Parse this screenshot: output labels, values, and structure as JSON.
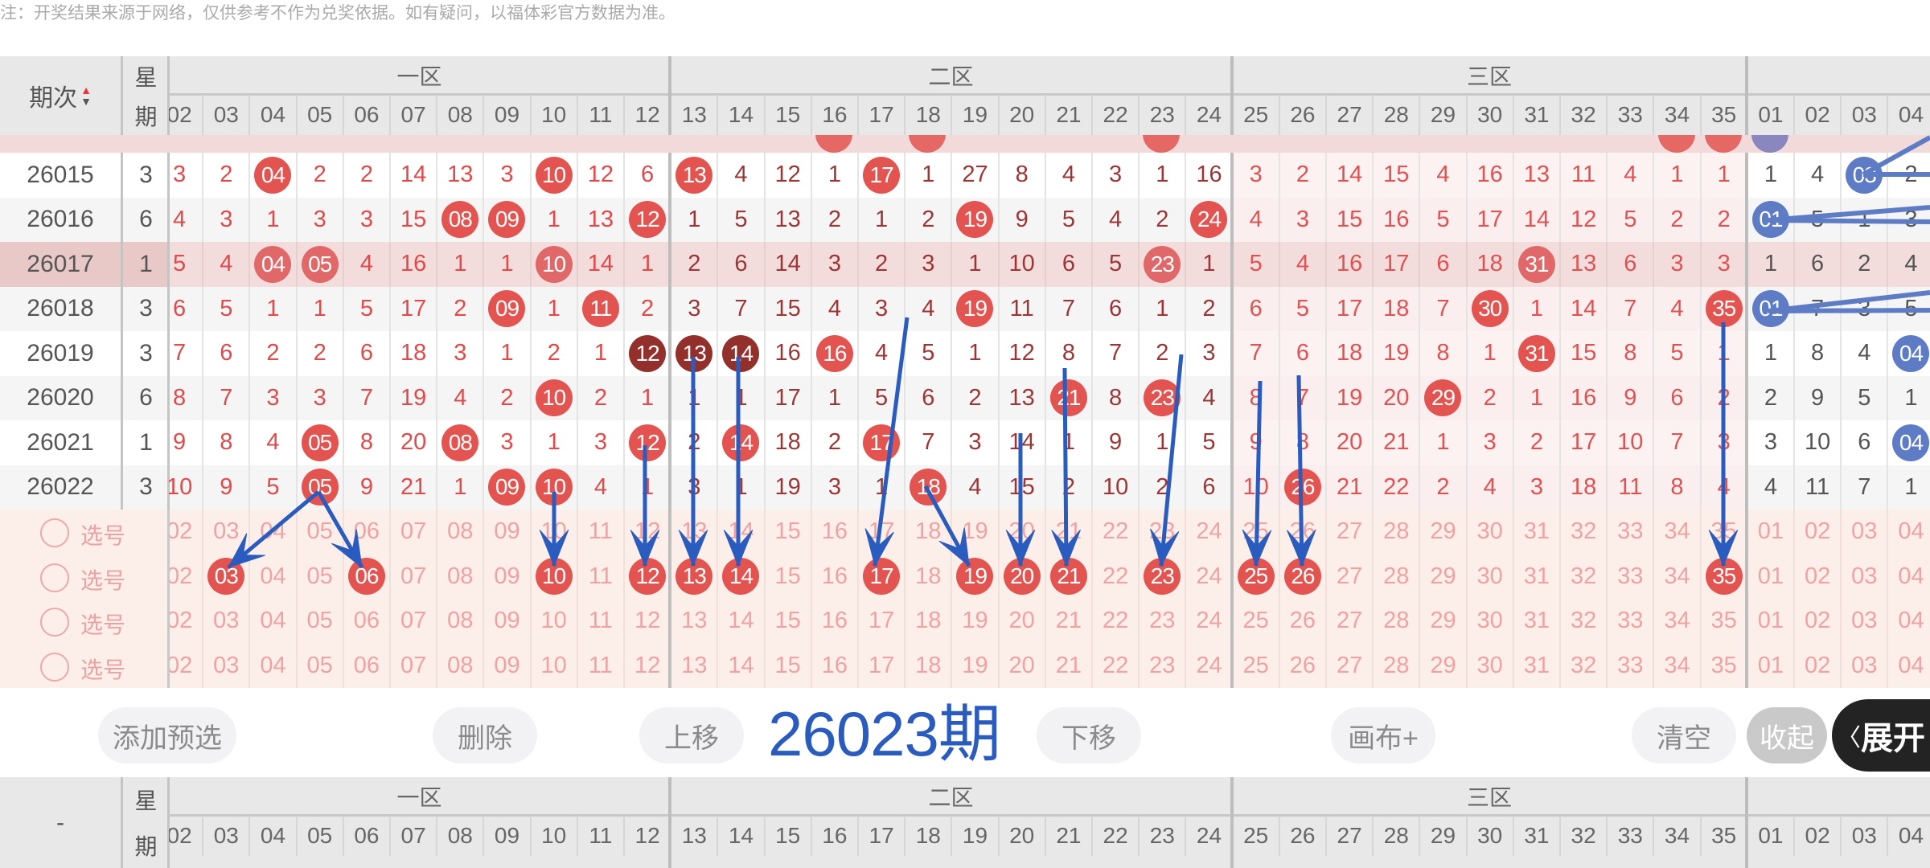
{
  "notice": "注：开奖结果来源于网络，仅供参考不作为兑奖依据。如有疑问，以福体彩官方数据为准。",
  "colors": {
    "red_ball": "#e3534f",
    "dark_ball": "#93302c",
    "blue_ball": "#5e7cc6",
    "highlight_row": "#f3dcdc",
    "zone1_text": "#e04a4a",
    "zone2_text": "#9c3636",
    "zone3_text": "#e05252",
    "annotation": "#2a5bbf"
  },
  "table": {
    "period_header": "期次",
    "sort_icon": "sort-up-down-icon",
    "weekday_header_top": "星",
    "weekday_header_bottom": "期",
    "zones": [
      "一区",
      "二区",
      "三区"
    ],
    "red_columns": [
      "02",
      "03",
      "04",
      "05",
      "06",
      "07",
      "08",
      "09",
      "10",
      "11",
      "12",
      "13",
      "14",
      "15",
      "16",
      "17",
      "18",
      "19",
      "20",
      "21",
      "22",
      "23",
      "24",
      "25",
      "26",
      "27",
      "28",
      "29",
      "30",
      "31",
      "32",
      "33",
      "34",
      "35"
    ],
    "blue_columns": [
      "01",
      "02",
      "03",
      "04"
    ],
    "partial_row": {
      "hits": [
        "16",
        "18",
        "23",
        "34",
        "35"
      ],
      "blue_hits": [
        "01"
      ]
    },
    "rows": [
      {
        "period": "26015",
        "weekday": "3",
        "red": [
          "3",
          "2",
          "04",
          "2",
          "2",
          "14",
          "13",
          "3",
          "10",
          "12",
          "6",
          "13",
          "4",
          "12",
          "1",
          "17",
          "1",
          "27",
          "8",
          "4",
          "3",
          "1",
          "16",
          "3",
          "2",
          "14",
          "15",
          "4",
          "16",
          "13",
          "11",
          "4",
          "1",
          "1"
        ],
        "blue": [
          "1",
          "4",
          "03",
          "2"
        ],
        "hits": [
          "04",
          "10",
          "13",
          "17"
        ],
        "blue_hits": [
          "03"
        ]
      },
      {
        "period": "26016",
        "weekday": "6",
        "red": [
          "4",
          "3",
          "1",
          "3",
          "3",
          "15",
          "08",
          "09",
          "1",
          "13",
          "12",
          "1",
          "5",
          "13",
          "2",
          "1",
          "2",
          "19",
          "9",
          "5",
          "4",
          "2",
          "24",
          "4",
          "3",
          "15",
          "16",
          "5",
          "17",
          "14",
          "12",
          "5",
          "2",
          "2"
        ],
        "blue": [
          "01",
          "5",
          "1",
          "3"
        ],
        "hits": [
          "08",
          "09",
          "12",
          "19",
          "24"
        ],
        "blue_hits": [
          "01"
        ]
      },
      {
        "period": "26017",
        "weekday": "1",
        "highlight": true,
        "red": [
          "5",
          "4",
          "04",
          "05",
          "4",
          "16",
          "1",
          "1",
          "10",
          "14",
          "1",
          "2",
          "6",
          "14",
          "3",
          "2",
          "3",
          "1",
          "10",
          "6",
          "5",
          "23",
          "1",
          "5",
          "4",
          "16",
          "17",
          "6",
          "18",
          "31",
          "13",
          "6",
          "3",
          "3"
        ],
        "blue": [
          "1",
          "6",
          "2",
          "4"
        ],
        "hits": [
          "04",
          "05",
          "10",
          "23",
          "31"
        ],
        "blue_hits": []
      },
      {
        "period": "26018",
        "weekday": "3",
        "red": [
          "6",
          "5",
          "1",
          "1",
          "5",
          "17",
          "2",
          "09",
          "1",
          "11",
          "2",
          "3",
          "7",
          "15",
          "4",
          "3",
          "4",
          "19",
          "11",
          "7",
          "6",
          "1",
          "2",
          "6",
          "5",
          "17",
          "18",
          "7",
          "30",
          "1",
          "14",
          "7",
          "4",
          "35"
        ],
        "blue": [
          "01",
          "7",
          "3",
          "5"
        ],
        "hits": [
          "09",
          "11",
          "19",
          "30",
          "35"
        ],
        "blue_hits": [
          "01"
        ]
      },
      {
        "period": "26019",
        "weekday": "3",
        "red": [
          "7",
          "6",
          "2",
          "2",
          "6",
          "18",
          "3",
          "1",
          "2",
          "1",
          "12",
          "13",
          "14",
          "16",
          "16",
          "4",
          "5",
          "1",
          "12",
          "8",
          "7",
          "2",
          "3",
          "7",
          "6",
          "18",
          "19",
          "8",
          "1",
          "31",
          "15",
          "8",
          "5",
          "1"
        ],
        "blue": [
          "1",
          "8",
          "4",
          "04"
        ],
        "hits": [
          "16",
          "31"
        ],
        "dark_hits": [
          "12",
          "13",
          "14"
        ],
        "blue_hits": [
          "04"
        ]
      },
      {
        "period": "26020",
        "weekday": "6",
        "red": [
          "8",
          "7",
          "3",
          "3",
          "7",
          "19",
          "4",
          "2",
          "10",
          "2",
          "1",
          "1",
          "1",
          "17",
          "1",
          "5",
          "6",
          "2",
          "13",
          "21",
          "8",
          "23",
          "4",
          "8",
          "7",
          "19",
          "20",
          "29",
          "2",
          "1",
          "16",
          "9",
          "6",
          "2"
        ],
        "blue": [
          "2",
          "9",
          "5",
          "1"
        ],
        "hits": [
          "10",
          "21",
          "23",
          "29"
        ],
        "blue_hits": []
      },
      {
        "period": "26021",
        "weekday": "1",
        "red": [
          "9",
          "8",
          "4",
          "05",
          "8",
          "20",
          "08",
          "3",
          "1",
          "3",
          "12",
          "2",
          "14",
          "18",
          "2",
          "17",
          "7",
          "3",
          "14",
          "1",
          "9",
          "1",
          "5",
          "9",
          "8",
          "20",
          "21",
          "1",
          "3",
          "2",
          "17",
          "10",
          "7",
          "3"
        ],
        "blue": [
          "3",
          "10",
          "6",
          "04"
        ],
        "hits": [
          "05",
          "08",
          "12",
          "14",
          "17"
        ],
        "blue_hits": [
          "04"
        ]
      },
      {
        "period": "26022",
        "weekday": "3",
        "red": [
          "10",
          "9",
          "5",
          "05",
          "9",
          "21",
          "1",
          "09",
          "10",
          "4",
          "1",
          "3",
          "1",
          "19",
          "3",
          "1",
          "18",
          "4",
          "15",
          "2",
          "10",
          "2",
          "6",
          "10",
          "26",
          "21",
          "22",
          "2",
          "4",
          "3",
          "18",
          "11",
          "8",
          "4"
        ],
        "blue": [
          "4",
          "11",
          "7",
          "1"
        ],
        "hits": [
          "05",
          "09",
          "10",
          "18",
          "26"
        ],
        "blue_hits": []
      }
    ]
  },
  "selection": {
    "radio_label": "选号",
    "rows": [
      {
        "hits": []
      },
      {
        "hits": [
          "03",
          "06",
          "10",
          "12",
          "13",
          "14",
          "17",
          "19",
          "20",
          "21",
          "23",
          "25",
          "26",
          "35"
        ]
      },
      {
        "hits": []
      },
      {
        "hits": []
      }
    ]
  },
  "annotation": "26023期",
  "buttons": [
    {
      "label": "添加预选",
      "name": "add-preselect-button"
    },
    {
      "label": "删除",
      "name": "delete-button"
    },
    {
      "label": "上移",
      "name": "move-up-button"
    },
    {
      "label": "下移",
      "name": "move-down-button"
    },
    {
      "label": "画布+",
      "name": "canvas-plus-button"
    },
    {
      "label": "清空",
      "name": "clear-button"
    },
    {
      "label": "收起",
      "name": "collapse-button"
    }
  ],
  "expand": {
    "label": "展开",
    "icon": "chevron-left-icon"
  },
  "bottom_header": {
    "period_header": "-"
  }
}
